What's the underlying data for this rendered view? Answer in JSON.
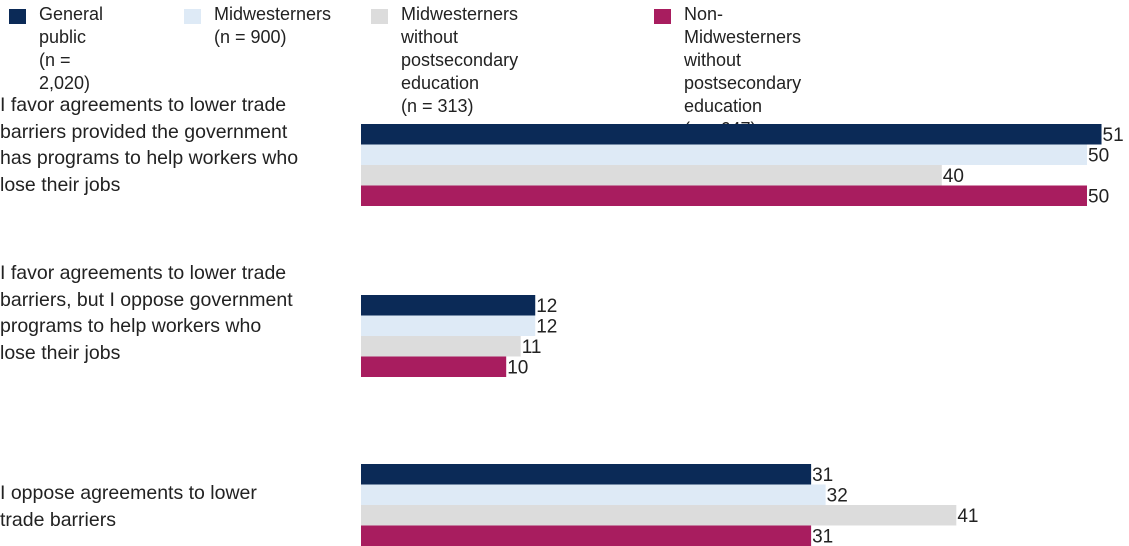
{
  "chart_data": {
    "type": "bar",
    "orientation": "horizontal",
    "categories": [
      "I favor agreements to lower trade barriers provided the government has programs to help workers who lose their jobs",
      "I favor agreements to lower trade barriers, but I oppose government programs to help workers who lose their jobs",
      "I oppose agreements to lower trade barriers"
    ],
    "series": [
      {
        "name": "General public",
        "sample": "(n = 2,020)",
        "color": "#0b2a57",
        "values": [
          51,
          12,
          31
        ]
      },
      {
        "name": "Midwesterners",
        "sample": "(n = 900)",
        "color": "#deeaf6",
        "values": [
          50,
          12,
          32
        ]
      },
      {
        "name": "Midwesterners without postsecondary education",
        "sample": "(n = 313)",
        "color": "#dcdcdc",
        "values": [
          40,
          11,
          41
        ]
      },
      {
        "name": "Non-Midwesterners without postsecondary education",
        "sample": "(n = 647)",
        "color": "#a81d5f",
        "values": [
          50,
          10,
          31
        ]
      }
    ],
    "legend_position": "top",
    "grid": false
  },
  "legend": [
    {
      "label": "General public\n(n = 2,020)"
    },
    {
      "label": "Midwesterners\n(n = 900)"
    },
    {
      "label": "Midwesterners without\npostsecondary education\n(n = 313)"
    },
    {
      "label": "Non-Midwesterners without\npostsecondary education\n(n = 647)"
    }
  ]
}
